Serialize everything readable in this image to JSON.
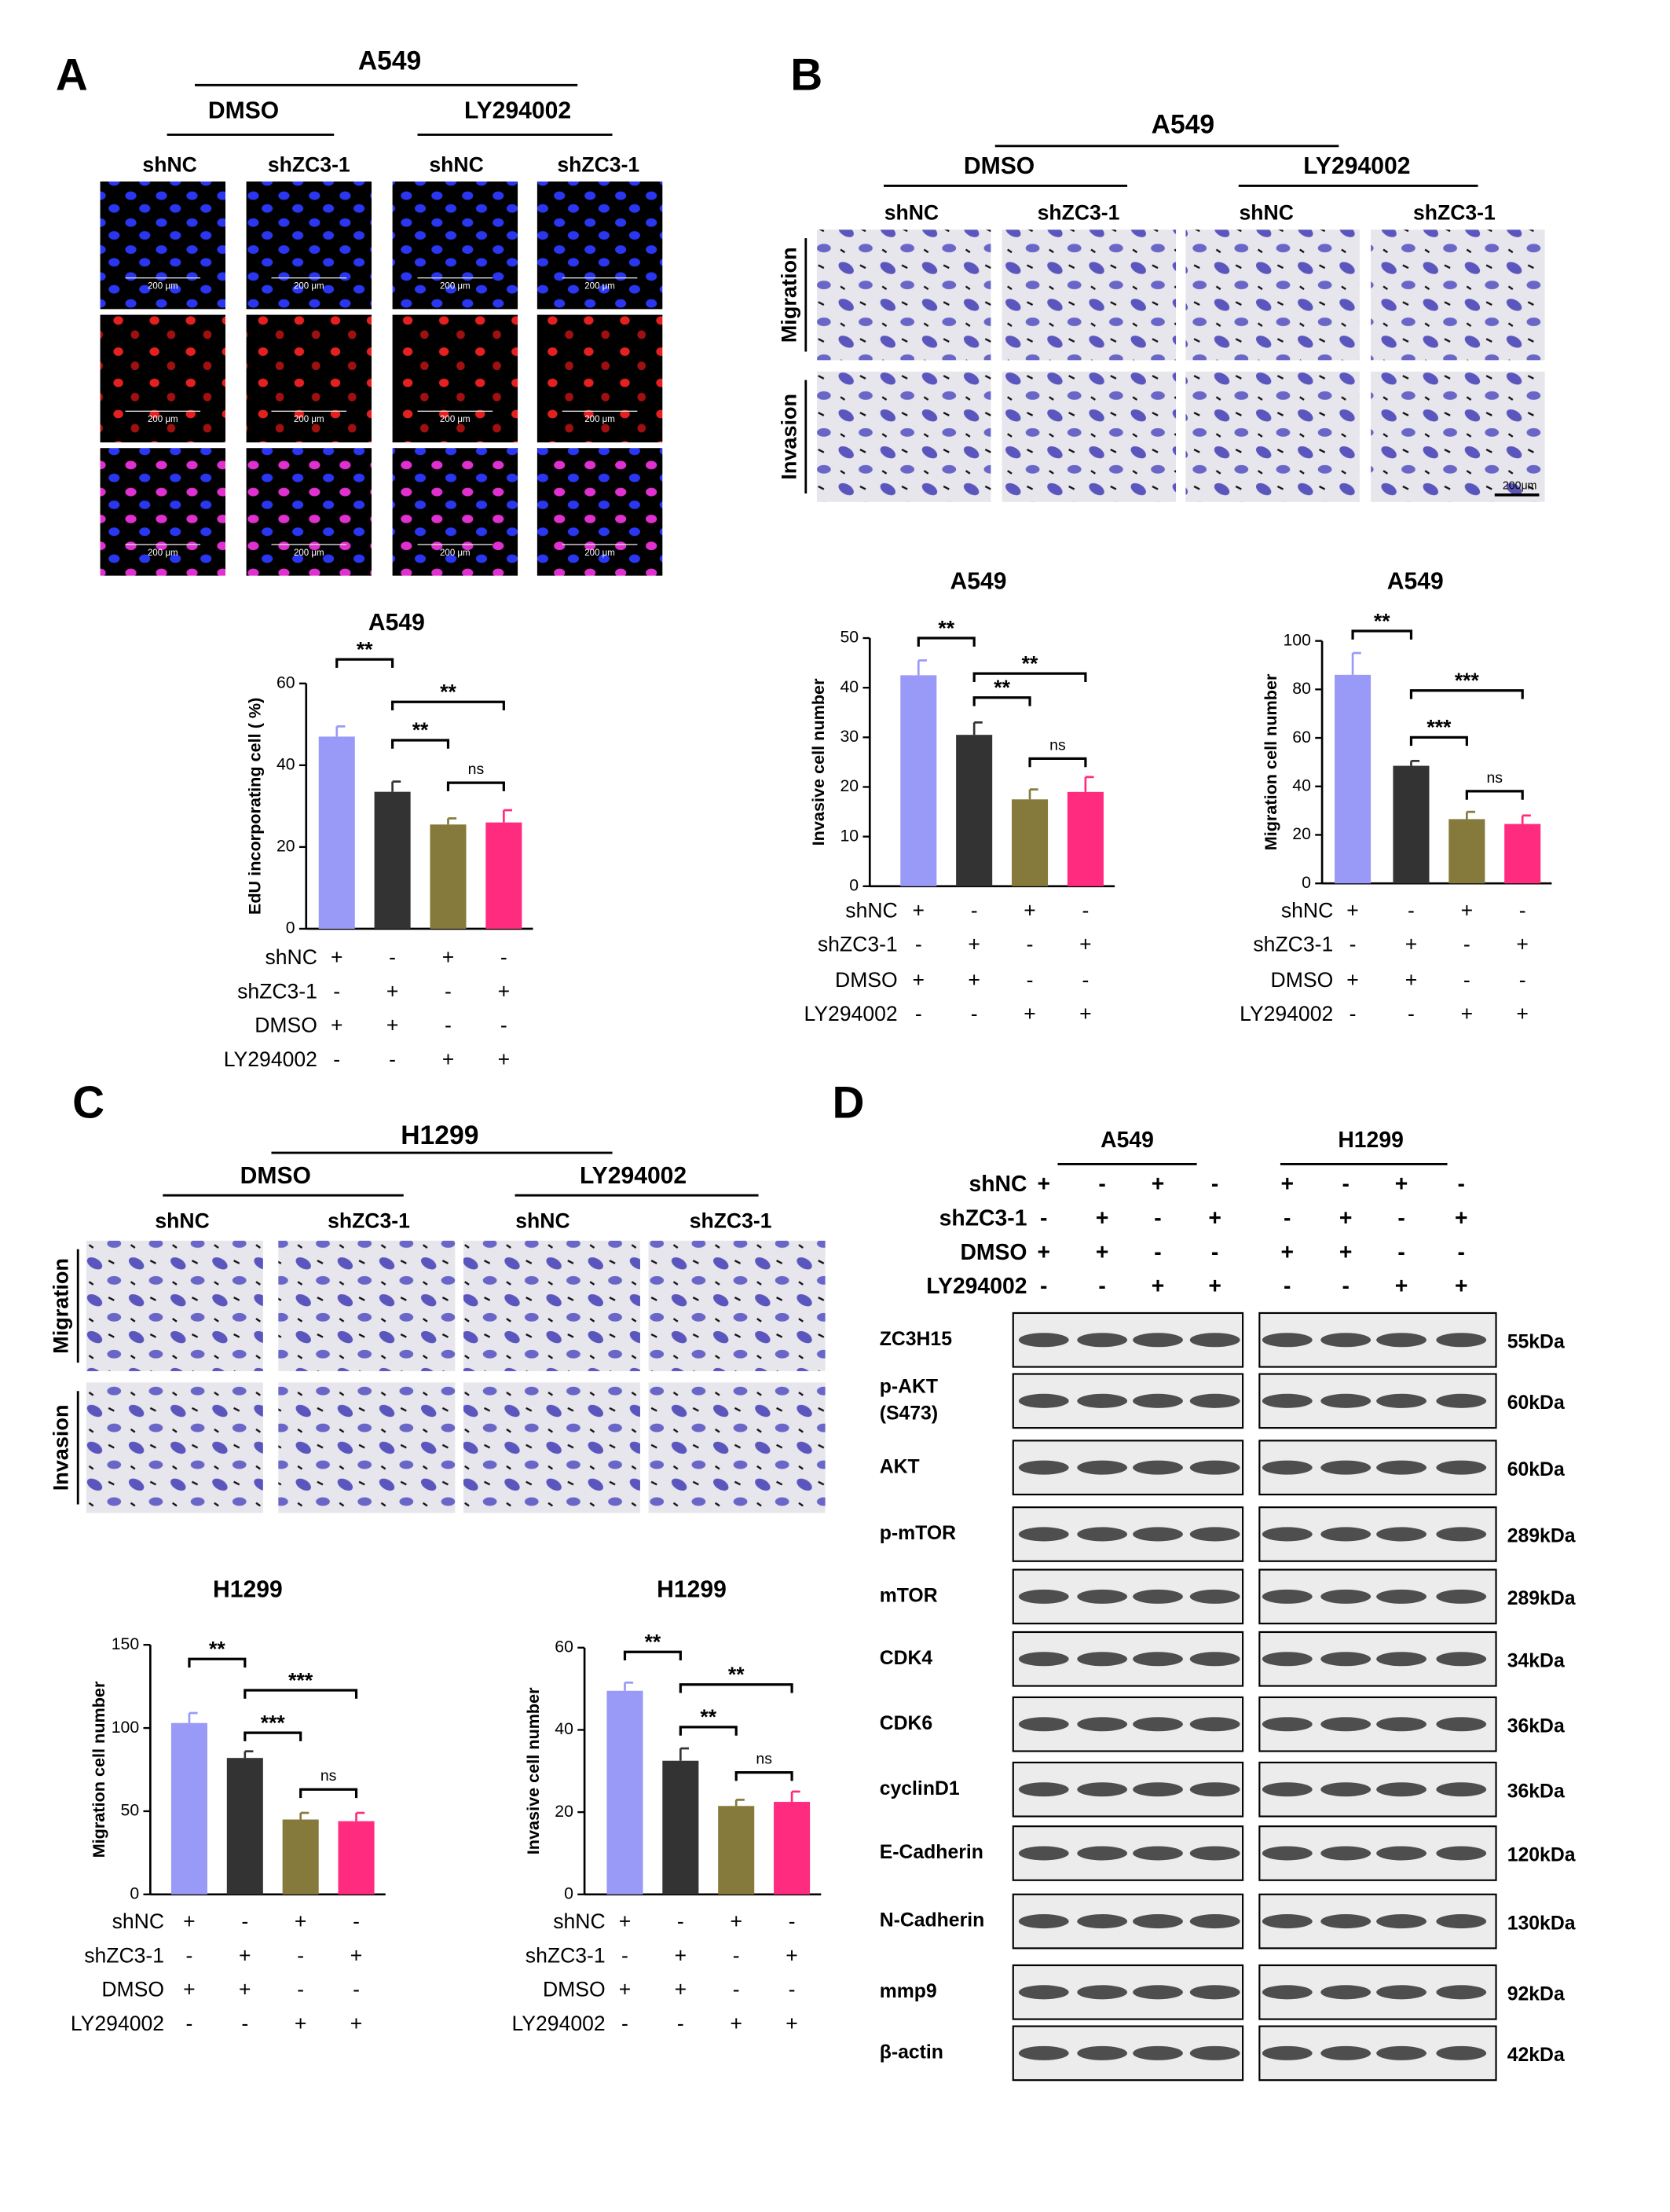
{
  "chart_data": [
    {
      "type": "bar",
      "title": "A549",
      "ylabel": "EdU  incorporating cell ( %)",
      "categories": [
        null,
        null,
        null,
        null
      ],
      "values": [
        47,
        33.5,
        25.5,
        26
      ],
      "errors": [
        2.5,
        2.5,
        1.5,
        3
      ],
      "colors": [
        "#9999f7",
        "#333333",
        "#857a3b",
        "#ff2b7e"
      ],
      "ylim": [
        0,
        60
      ],
      "yticks": [
        0,
        20,
        40,
        60
      ],
      "conditions": [
        {
          "name": "shNC",
          "marks": [
            "+",
            "-",
            "+",
            "-"
          ]
        },
        {
          "name": "shZC3-1",
          "marks": [
            "-",
            "+",
            "-",
            "+"
          ]
        },
        {
          "name": "DMSO",
          "marks": [
            "+",
            "+",
            "-",
            "-"
          ]
        },
        {
          "name": "LY294002",
          "marks": [
            "-",
            "-",
            "+",
            "+"
          ]
        }
      ],
      "annotations": [
        {
          "from": 0,
          "to": 1,
          "label": "**"
        },
        {
          "from": 1,
          "to": 3,
          "label": "**"
        },
        {
          "from": 1,
          "to": 2,
          "label": "**"
        },
        {
          "from": 2,
          "to": 3,
          "label": "ns"
        }
      ]
    },
    {
      "type": "bar",
      "title": "A549",
      "ylabel": "Invasive cell number",
      "categories": [
        null,
        null,
        null,
        null
      ],
      "values": [
        42.5,
        30.5,
        17.5,
        19
      ],
      "errors": [
        3,
        2.5,
        2,
        3
      ],
      "colors": [
        "#9999f7",
        "#333333",
        "#857a3b",
        "#ff2b7e"
      ],
      "ylim": [
        0,
        50
      ],
      "yticks": [
        0,
        10,
        20,
        30,
        40,
        50
      ],
      "conditions": [
        {
          "name": "shNC",
          "marks": [
            "+",
            "-",
            "+",
            "-"
          ]
        },
        {
          "name": "shZC3-1",
          "marks": [
            "-",
            "+",
            "-",
            "+"
          ]
        },
        {
          "name": "DMSO",
          "marks": [
            "+",
            "+",
            "-",
            "-"
          ]
        },
        {
          "name": "LY294002",
          "marks": [
            "-",
            "-",
            "+",
            "+"
          ]
        }
      ],
      "annotations": [
        {
          "from": 0,
          "to": 1,
          "label": "**"
        },
        {
          "from": 1,
          "to": 3,
          "label": "**"
        },
        {
          "from": 1,
          "to": 2,
          "label": "**"
        },
        {
          "from": 2,
          "to": 3,
          "label": "ns"
        }
      ]
    },
    {
      "type": "bar",
      "title": "A549",
      "ylabel": "Migration cell number",
      "categories": [
        null,
        null,
        null,
        null
      ],
      "values": [
        86,
        48.5,
        26.5,
        24.5
      ],
      "errors": [
        9,
        2,
        3,
        3.5
      ],
      "colors": [
        "#9999f7",
        "#333333",
        "#857a3b",
        "#ff2b7e"
      ],
      "ylim": [
        0,
        100
      ],
      "yticks": [
        0,
        20,
        40,
        60,
        80,
        100
      ],
      "conditions": [
        {
          "name": "shNC",
          "marks": [
            "+",
            "-",
            "+",
            "-"
          ]
        },
        {
          "name": "shZC3-1",
          "marks": [
            "-",
            "+",
            "-",
            "+"
          ]
        },
        {
          "name": "DMSO",
          "marks": [
            "+",
            "+",
            "-",
            "-"
          ]
        },
        {
          "name": "LY294002",
          "marks": [
            "-",
            "-",
            "+",
            "+"
          ]
        }
      ],
      "annotations": [
        {
          "from": 0,
          "to": 1,
          "label": "**"
        },
        {
          "from": 1,
          "to": 3,
          "label": "***"
        },
        {
          "from": 1,
          "to": 2,
          "label": "***"
        },
        {
          "from": 2,
          "to": 3,
          "label": "ns"
        }
      ]
    },
    {
      "type": "bar",
      "title": "H1299",
      "ylabel": "Migration cell number",
      "categories": [
        null,
        null,
        null,
        null
      ],
      "values": [
        103,
        82,
        45,
        44
      ],
      "errors": [
        6,
        4,
        4,
        5
      ],
      "colors": [
        "#9999f7",
        "#333333",
        "#857a3b",
        "#ff2b7e"
      ],
      "ylim": [
        0,
        150
      ],
      "yticks": [
        0,
        50,
        100,
        150
      ],
      "conditions": [
        {
          "name": "shNC",
          "marks": [
            "+",
            "-",
            "+",
            "-"
          ]
        },
        {
          "name": "shZC3-1",
          "marks": [
            "-",
            "+",
            "-",
            "+"
          ]
        },
        {
          "name": "DMSO",
          "marks": [
            "+",
            "+",
            "-",
            "-"
          ]
        },
        {
          "name": "LY294002",
          "marks": [
            "-",
            "-",
            "+",
            "+"
          ]
        }
      ],
      "annotations": [
        {
          "from": 0,
          "to": 1,
          "label": "**"
        },
        {
          "from": 1,
          "to": 3,
          "label": "***"
        },
        {
          "from": 1,
          "to": 2,
          "label": "***"
        },
        {
          "from": 2,
          "to": 3,
          "label": "ns"
        }
      ]
    },
    {
      "type": "bar",
      "title": "H1299",
      "ylabel": "Invasive cell number",
      "categories": [
        null,
        null,
        null,
        null
      ],
      "values": [
        49.5,
        32.5,
        21.5,
        22.5
      ],
      "errors": [
        2,
        3,
        1.5,
        2.5
      ],
      "colors": [
        "#9999f7",
        "#333333",
        "#857a3b",
        "#ff2b7e"
      ],
      "ylim": [
        0,
        60
      ],
      "yticks": [
        0,
        20,
        40,
        60
      ],
      "conditions": [
        {
          "name": "shNC",
          "marks": [
            "+",
            "-",
            "+",
            "-"
          ]
        },
        {
          "name": "shZC3-1",
          "marks": [
            "-",
            "+",
            "-",
            "+"
          ]
        },
        {
          "name": "DMSO",
          "marks": [
            "+",
            "+",
            "-",
            "-"
          ]
        },
        {
          "name": "LY294002",
          "marks": [
            "-",
            "-",
            "+",
            "+"
          ]
        }
      ],
      "annotations": [
        {
          "from": 0,
          "to": 1,
          "label": "**"
        },
        {
          "from": 1,
          "to": 3,
          "label": "**"
        },
        {
          "from": 1,
          "to": 2,
          "label": "**"
        },
        {
          "from": 2,
          "to": 3,
          "label": "ns"
        }
      ]
    }
  ],
  "panel_a": {
    "label": "A",
    "cell_line": "A549",
    "treatments": [
      "DMSO",
      "LY294002"
    ],
    "groups": [
      "shNC",
      "shZC3-1",
      "shNC",
      "shZC3-1"
    ],
    "scale_bar": "200 μm"
  },
  "panel_b": {
    "label": "B",
    "cell_line": "A549",
    "treatments": [
      "DMSO",
      "LY294002"
    ],
    "groups": [
      "shNC",
      "shZC3-1",
      "shNC",
      "shZC3-1"
    ],
    "rows": [
      "Migration",
      "Invasion"
    ],
    "scale_bar": "200μm"
  },
  "panel_c": {
    "label": "C",
    "cell_line": "H1299",
    "treatments": [
      "DMSO",
      "LY294002"
    ],
    "groups": [
      "shNC",
      "shZC3-1",
      "shNC",
      "shZC3-1"
    ],
    "rows": [
      "Migration",
      "Invasion"
    ]
  },
  "panel_d": {
    "label": "D",
    "cell_lines": [
      "A549",
      "H1299"
    ],
    "conditions": [
      {
        "name": "shNC",
        "marks": [
          "+",
          "-",
          "+",
          "-",
          "+",
          "-",
          "+",
          "-"
        ]
      },
      {
        "name": "shZC3-1",
        "marks": [
          "-",
          "+",
          "-",
          "+",
          "-",
          "+",
          "-",
          "+"
        ]
      },
      {
        "name": "DMSO",
        "marks": [
          "+",
          "+",
          "-",
          "-",
          "+",
          "+",
          "-",
          "-"
        ]
      },
      {
        "name": "LY294002",
        "marks": [
          "-",
          "-",
          "+",
          "+",
          "-",
          "-",
          "+",
          "+"
        ]
      }
    ],
    "blots": [
      {
        "name": [
          "ZC3H15"
        ],
        "size": "55kDa"
      },
      {
        "name": [
          "p-AKT",
          "(S473)"
        ],
        "size": "60kDa"
      },
      {
        "name": [
          "AKT"
        ],
        "size": "60kDa"
      },
      {
        "name": [
          "p-mTOR"
        ],
        "size": "289kDa"
      },
      {
        "name": [
          "mTOR"
        ],
        "size": "289kDa"
      },
      {
        "name": [
          "CDK4"
        ],
        "size": "34kDa"
      },
      {
        "name": [
          "CDK6"
        ],
        "size": "36kDa"
      },
      {
        "name": [
          "cyclinD1"
        ],
        "size": "36kDa"
      },
      {
        "name": [
          "E-Cadherin"
        ],
        "size": "120kDa"
      },
      {
        "name": [
          "N-Cadherin"
        ],
        "size": "130kDa"
      },
      {
        "name": [
          "mmp9"
        ],
        "size": "92kDa"
      },
      {
        "name": [
          "β-actin"
        ],
        "size": "42kDa"
      }
    ]
  }
}
